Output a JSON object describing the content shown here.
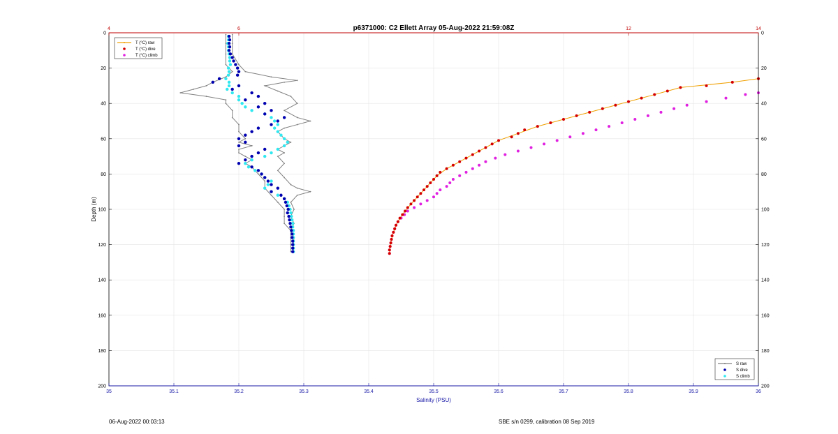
{
  "chart_data": {
    "type": "scatter",
    "title": "p6371000: C2 Ellett Array 05-Aug-2022 21:59:08Z",
    "xlabel": "Salinity (PSU)",
    "ylabel": "Depth (m)",
    "xlim": [
      35,
      36
    ],
    "x_ticks": [
      "35",
      "35.1",
      "35.2",
      "35.3",
      "35.4",
      "35.5",
      "35.6",
      "35.7",
      "35.8",
      "35.9",
      "36"
    ],
    "x_top_lim": [
      4,
      14
    ],
    "x_top_ticks": [
      "4",
      "6",
      "12",
      "14"
    ],
    "ylim": [
      0,
      200
    ],
    "y_ticks": [
      "0",
      "20",
      "40",
      "60",
      "80",
      "100",
      "120",
      "140",
      "160",
      "180",
      "200"
    ],
    "y_reversed": true,
    "grid": true,
    "colors": {
      "T_raw": "#f0a000",
      "T_dive": "#d40000",
      "T_climb": "#e020e0",
      "S_raw": "#808080",
      "S_dive": "#0000b0",
      "S_climb": "#30e8f0",
      "top_axis": "#c00000",
      "bottom_axis": "#1a1aa8"
    },
    "legend_temperature": {
      "position": "top-left",
      "entries": [
        "T (°C) raw",
        "T (°C) dive",
        "T (°C) climb"
      ]
    },
    "legend_salinity": {
      "position": "bottom-right",
      "entries": [
        "S raw",
        "S dive",
        "S climb"
      ]
    },
    "temperature_dive": {
      "name": "T (°C) dive",
      "depth": [
        26,
        28,
        30,
        31,
        33,
        35,
        37,
        39,
        41,
        43,
        45,
        47,
        49,
        51,
        53,
        55,
        57,
        59,
        61,
        63,
        65,
        67,
        69,
        71,
        73,
        75,
        77,
        79,
        81,
        83,
        85,
        87,
        89,
        91,
        93,
        95,
        97,
        99,
        101,
        103,
        105,
        107,
        109,
        111,
        113,
        115,
        117,
        119,
        121,
        123,
        125
      ],
      "values": [
        14.0,
        13.6,
        13.2,
        12.8,
        12.6,
        12.4,
        12.2,
        12.0,
        11.8,
        11.6,
        11.4,
        11.2,
        11.0,
        10.8,
        10.6,
        10.4,
        10.3,
        10.2,
        10.0,
        9.9,
        9.8,
        9.7,
        9.6,
        9.5,
        9.4,
        9.3,
        9.2,
        9.1,
        9.05,
        9.0,
        8.95,
        8.9,
        8.85,
        8.8,
        8.75,
        8.7,
        8.65,
        8.6,
        8.56,
        8.52,
        8.48,
        8.45,
        8.42,
        8.4,
        8.38,
        8.36,
        8.35,
        8.34,
        8.33,
        8.32,
        8.32
      ]
    },
    "temperature_climb": {
      "name": "T (°C) climb",
      "depth": [
        34,
        35,
        37,
        39,
        41,
        43,
        45,
        47,
        49,
        51,
        53,
        55,
        57,
        59,
        61,
        63,
        65,
        67,
        69,
        71,
        73,
        75,
        77,
        79,
        81,
        83,
        85,
        87,
        89,
        91,
        93,
        95,
        97,
        99,
        101,
        103,
        105,
        107,
        109,
        111,
        113,
        115,
        117,
        119,
        121,
        123,
        125
      ],
      "values": [
        14.0,
        13.8,
        13.5,
        13.2,
        12.9,
        12.7,
        12.5,
        12.3,
        12.1,
        11.9,
        11.7,
        11.5,
        11.3,
        11.1,
        10.9,
        10.7,
        10.5,
        10.3,
        10.1,
        9.95,
        9.8,
        9.7,
        9.6,
        9.5,
        9.4,
        9.3,
        9.25,
        9.2,
        9.1,
        9.05,
        9.0,
        8.9,
        8.8,
        8.7,
        8.6,
        8.55,
        8.5,
        8.45,
        8.42,
        8.4,
        8.38,
        8.36,
        8.35,
        8.34,
        8.33,
        8.32,
        8.32
      ]
    },
    "salinity_dive": {
      "name": "S dive",
      "depth": [
        2,
        4,
        6,
        8,
        10,
        12,
        14,
        16,
        18,
        20,
        22,
        24,
        26,
        28,
        30,
        32,
        34,
        36,
        38,
        40,
        42,
        44,
        46,
        48,
        50,
        52,
        54,
        56,
        58,
        60,
        62,
        64,
        66,
        68,
        70,
        72,
        74,
        76,
        78,
        80,
        82,
        84,
        86,
        88,
        90,
        92,
        94,
        96,
        98,
        100,
        102,
        104,
        106,
        108,
        110,
        112,
        114,
        116,
        118,
        120,
        122,
        124
      ],
      "values": [
        35.185,
        35.186,
        35.185,
        35.186,
        35.185,
        35.187,
        35.19,
        35.192,
        35.195,
        35.198,
        35.2,
        35.198,
        35.17,
        35.16,
        35.2,
        35.19,
        35.22,
        35.23,
        35.21,
        35.24,
        35.23,
        35.25,
        35.24,
        35.27,
        35.26,
        35.25,
        35.23,
        35.22,
        35.21,
        35.2,
        35.21,
        35.2,
        35.24,
        35.23,
        35.22,
        35.21,
        35.2,
        35.22,
        35.23,
        35.235,
        35.24,
        35.245,
        35.25,
        35.26,
        35.25,
        35.265,
        35.27,
        35.272,
        35.274,
        35.276,
        35.275,
        35.277,
        35.278,
        35.279,
        35.28,
        35.281,
        35.282,
        35.282,
        35.283,
        35.283,
        35.283,
        35.283
      ]
    },
    "salinity_climb": {
      "name": "S climb",
      "depth": [
        2,
        4,
        6,
        8,
        10,
        12,
        14,
        16,
        18,
        20,
        22,
        24,
        26,
        28,
        30,
        32,
        34,
        36,
        38,
        40,
        42,
        44,
        46,
        48,
        50,
        52,
        54,
        56,
        58,
        60,
        62,
        64,
        66,
        68,
        70,
        72,
        74,
        76,
        78,
        80,
        82,
        84,
        86,
        88,
        90,
        92,
        94,
        96,
        98,
        100,
        102,
        104,
        106,
        108,
        110,
        112,
        114,
        116,
        118,
        120,
        122,
        124
      ],
      "values": [
        35.184,
        35.184,
        35.183,
        35.184,
        35.184,
        35.185,
        35.186,
        35.186,
        35.187,
        35.184,
        35.185,
        35.184,
        35.18,
        35.185,
        35.185,
        35.182,
        35.19,
        35.2,
        35.2,
        35.205,
        35.21,
        35.22,
        35.24,
        35.25,
        35.255,
        35.26,
        35.255,
        35.26,
        35.265,
        35.27,
        35.275,
        35.27,
        35.26,
        35.25,
        35.24,
        35.22,
        35.21,
        35.215,
        35.225,
        35.235,
        35.24,
        35.25,
        35.245,
        35.24,
        35.25,
        35.26,
        35.27,
        35.275,
        35.277,
        35.279,
        35.28,
        35.281,
        35.282,
        35.283,
        35.283,
        35.284,
        35.284,
        35.284,
        35.284,
        35.284,
        35.284,
        35.284
      ]
    },
    "salinity_raw_left": {
      "name": "S raw",
      "depth": [
        1,
        6,
        12,
        18,
        22,
        25,
        28,
        30,
        32,
        34,
        36,
        38,
        40,
        44,
        48,
        52,
        56,
        60,
        62,
        64,
        66,
        68,
        70,
        72,
        74,
        76,
        80,
        84,
        88,
        92,
        96,
        100,
        104,
        108,
        112,
        116,
        120,
        124
      ],
      "values": [
        35.18,
        35.18,
        35.18,
        35.18,
        35.19,
        35.18,
        35.16,
        35.15,
        35.13,
        35.11,
        35.15,
        35.18,
        35.18,
        35.19,
        35.19,
        35.2,
        35.2,
        35.21,
        35.2,
        35.22,
        35.2,
        35.2,
        35.21,
        35.22,
        35.21,
        35.22,
        35.23,
        35.24,
        35.24,
        35.25,
        35.26,
        35.27,
        35.27,
        35.27,
        35.28,
        35.28,
        35.28,
        35.28
      ]
    },
    "salinity_raw_right": {
      "name": "S raw",
      "depth": [
        1,
        6,
        12,
        18,
        22,
        25,
        27,
        28,
        30,
        33,
        36,
        40,
        44,
        48,
        50,
        52,
        54,
        56,
        60,
        62,
        64,
        66,
        68,
        70,
        74,
        78,
        82,
        86,
        88,
        90,
        92,
        96,
        100,
        104,
        108,
        112,
        116,
        120,
        124
      ],
      "values": [
        35.19,
        35.19,
        35.19,
        35.2,
        35.21,
        35.25,
        35.29,
        35.27,
        35.24,
        35.26,
        35.28,
        35.29,
        35.27,
        35.29,
        35.31,
        35.29,
        35.27,
        35.26,
        35.27,
        35.28,
        35.27,
        35.26,
        35.27,
        35.26,
        35.27,
        35.26,
        35.27,
        35.28,
        35.29,
        35.31,
        35.29,
        35.28,
        35.285,
        35.28,
        35.285,
        35.28,
        35.285,
        35.284,
        35.284
      ]
    },
    "temperature_raw": {
      "name": "T (°C) raw",
      "depth": [
        26,
        28,
        31,
        33,
        35,
        37,
        41,
        45,
        49,
        53,
        57,
        61,
        65,
        69,
        73,
        77,
        81,
        85,
        89,
        93,
        97,
        101,
        105,
        109,
        113,
        117,
        121,
        125
      ],
      "values": [
        14.0,
        13.6,
        12.8,
        12.6,
        12.4,
        12.2,
        11.8,
        11.4,
        11.0,
        10.6,
        10.3,
        10.0,
        9.8,
        9.6,
        9.4,
        9.2,
        9.05,
        8.95,
        8.85,
        8.75,
        8.65,
        8.56,
        8.48,
        8.42,
        8.38,
        8.35,
        8.33,
        8.32
      ]
    }
  },
  "footer": {
    "left": "06-Aug-2022 00:03:13",
    "right": "SBE s/n 0299, calibration 08 Sep 2019"
  }
}
